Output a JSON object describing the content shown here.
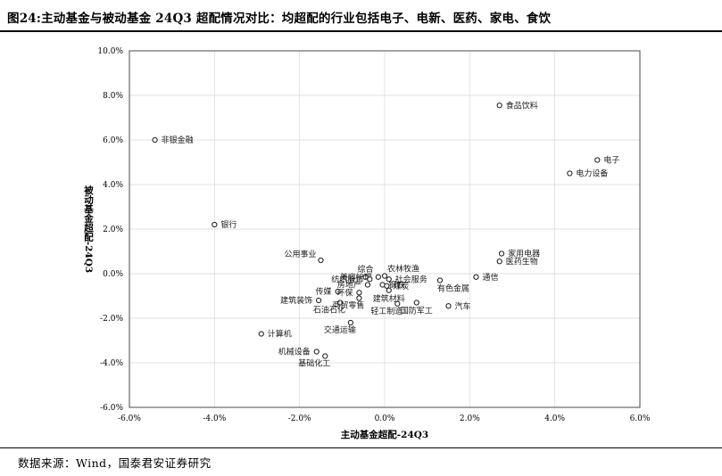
{
  "page": {
    "title": "图24:主动基金与被动基金 24Q3 超配情况对比：均超配的行业包括电子、电新、医药、家电、食饮",
    "source": "数据来源：Wind，国泰君安证券研究"
  },
  "chart_data": {
    "type": "scatter",
    "title": "",
    "xlabel": "主动基金超配-24Q3",
    "ylabel": "被动基金超配-24Q3",
    "xlim": [
      -6,
      6
    ],
    "ylim": [
      -6,
      10
    ],
    "x_ticks": [
      -6,
      -4,
      -2,
      0,
      2,
      4,
      6
    ],
    "x_tick_labels": [
      "-6.0%",
      "-4.0%",
      "-2.0%",
      "0.0%",
      "2.0%",
      "4.0%",
      "6.0%"
    ],
    "y_ticks": [
      -6,
      -4,
      -2,
      0,
      2,
      4,
      6,
      8,
      10
    ],
    "y_tick_labels": [
      "-6.0%",
      "-4.0%",
      "-2.0%",
      "0.0%",
      "2.0%",
      "4.0%",
      "6.0%",
      "8.0%",
      "10.0%"
    ],
    "grid": true,
    "legend": "none",
    "marker": {
      "shape": "circle-open",
      "stroke": "#1a1a1a",
      "fill": "#ffffff"
    },
    "grid_color": "#d9d9d9",
    "border_color": "#595959",
    "points": [
      {
        "name": "非银金融",
        "x": -5.4,
        "y": 6.0,
        "label_pos": "right"
      },
      {
        "name": "银行",
        "x": -4.0,
        "y": 2.2,
        "label_pos": "right"
      },
      {
        "name": "公用事业",
        "x": -1.5,
        "y": 0.6,
        "label_pos": "left-above"
      },
      {
        "name": "食品饮料",
        "x": 2.7,
        "y": 7.55,
        "label_pos": "right"
      },
      {
        "name": "电子",
        "x": 5.0,
        "y": 5.1,
        "label_pos": "right"
      },
      {
        "name": "电力设备",
        "x": 4.35,
        "y": 4.5,
        "label_pos": "right"
      },
      {
        "name": "家用电器",
        "x": 2.75,
        "y": 0.9,
        "label_pos": "right"
      },
      {
        "name": "医药生物",
        "x": 2.7,
        "y": 0.55,
        "label_pos": "right"
      },
      {
        "name": "通信",
        "x": 2.15,
        "y": -0.15,
        "label_pos": "right"
      },
      {
        "name": "有色金属",
        "x": 1.3,
        "y": -0.3,
        "label_pos": "below-right"
      },
      {
        "name": "汽车",
        "x": 1.5,
        "y": -1.45,
        "label_pos": "right"
      },
      {
        "name": "国防军工",
        "x": 0.75,
        "y": -1.3,
        "label_pos": "below"
      },
      {
        "name": "轻工制造",
        "x": 0.3,
        "y": -1.35,
        "label_pos": "below-left"
      },
      {
        "name": "石油石化",
        "x": -1.05,
        "y": -1.3,
        "label_pos": "below-left"
      },
      {
        "name": "商贸零售",
        "x": -0.6,
        "y": -1.1,
        "label_pos": "below-left"
      },
      {
        "name": "建筑装饰",
        "x": -1.55,
        "y": -1.2,
        "label_pos": "left"
      },
      {
        "name": "传媒",
        "x": -1.1,
        "y": -0.8,
        "label_pos": "left"
      },
      {
        "name": "环保",
        "x": -0.6,
        "y": -0.85,
        "label_pos": "left"
      },
      {
        "name": "计算机",
        "x": -2.9,
        "y": -2.7,
        "label_pos": "right"
      },
      {
        "name": "交通运输",
        "x": -0.8,
        "y": -2.2,
        "label_pos": "below-left"
      },
      {
        "name": "机械设备",
        "x": -1.6,
        "y": -3.5,
        "label_pos": "left"
      },
      {
        "name": "基础化工",
        "x": -1.4,
        "y": -3.7,
        "label_pos": "below-left"
      },
      {
        "name": "综合",
        "x": -0.45,
        "y": -0.15,
        "label_pos": "above"
      },
      {
        "name": "农林牧渔",
        "x": 0.0,
        "y": -0.1,
        "label_pos": "above-right"
      },
      {
        "name": "美容护理",
        "x": -0.15,
        "y": -0.15,
        "label_pos": "left"
      },
      {
        "name": "纺织服饰",
        "x": -0.35,
        "y": -0.25,
        "label_pos": "left"
      },
      {
        "name": "社会服务",
        "x": 0.1,
        "y": -0.25,
        "label_pos": "right"
      },
      {
        "name": "房地产",
        "x": -0.4,
        "y": -0.5,
        "label_pos": "left"
      },
      {
        "name": "钢铁",
        "x": -0.05,
        "y": -0.5,
        "label_pos": "right"
      },
      {
        "name": "煤炭",
        "x": 0.05,
        "y": -0.55,
        "label_pos": "right"
      },
      {
        "name": "建筑材料",
        "x": 0.1,
        "y": -0.75,
        "label_pos": "below"
      }
    ]
  }
}
